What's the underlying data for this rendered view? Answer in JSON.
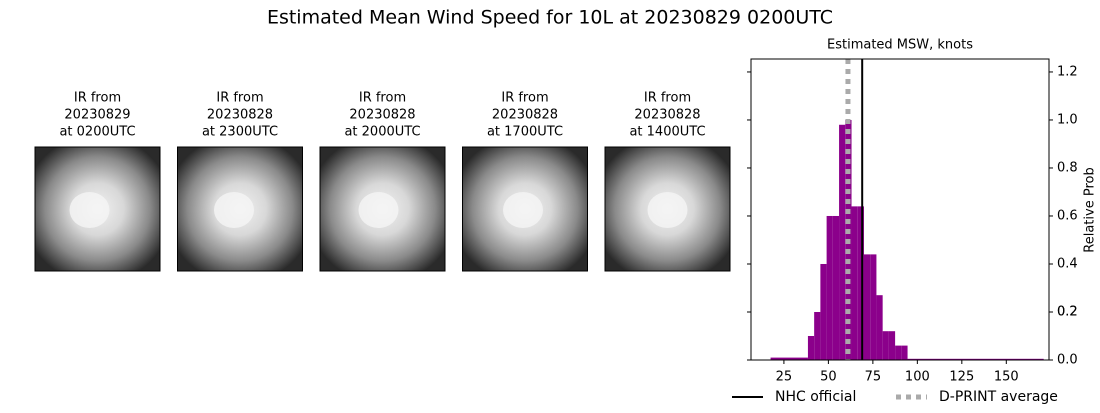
{
  "title": "Estimated Mean Wind Speed for 10L at 20230829 0200UTC",
  "images": [
    {
      "lines": [
        "IR from",
        "20230829",
        "at 0200UTC"
      ]
    },
    {
      "lines": [
        "IR from",
        "20230828",
        "at 2300UTC"
      ]
    },
    {
      "lines": [
        "IR from",
        "20230828",
        "at 2000UTC"
      ]
    },
    {
      "lines": [
        "IR from",
        "20230828",
        "at 1700UTC"
      ]
    },
    {
      "lines": [
        "IR from",
        "20230828",
        "at 1400UTC"
      ]
    }
  ],
  "chart_data": {
    "type": "histogram",
    "title": "Estimated MSW, knots",
    "ylabel": "Relative Prob",
    "bins": [
      17.5,
      38.5,
      42,
      45.5,
      49,
      52.5,
      56,
      59.5,
      63,
      66.5,
      70,
      73.5,
      77,
      80.5,
      84,
      87.5,
      91,
      94.5,
      171
    ],
    "values": [
      0.01,
      0.1,
      0.2,
      0.4,
      0.6,
      0.6,
      0.98,
      1.0,
      0.64,
      0.64,
      0.44,
      0.44,
      0.27,
      0.12,
      0.12,
      0.06,
      0.06,
      0.005
    ],
    "color": "#8b008b",
    "xlim": [
      6.5,
      174
    ],
    "xticks": [
      25,
      50,
      75,
      100,
      125,
      150
    ],
    "ylim": [
      0,
      1.254
    ],
    "yticks": [
      {
        "value": 0,
        "label": "0.0"
      },
      0.2,
      0.4,
      0.6,
      0.8,
      {
        "value": 1,
        "label": "1.0"
      },
      0.2,
      1.2
    ],
    "lines": [
      {
        "name": "NHC official",
        "value": 69,
        "color": "#000000",
        "style": "solid"
      },
      {
        "name": "D-PRINT average",
        "value": 61,
        "color": "#aaaaaa",
        "style": "dotted"
      }
    ]
  }
}
